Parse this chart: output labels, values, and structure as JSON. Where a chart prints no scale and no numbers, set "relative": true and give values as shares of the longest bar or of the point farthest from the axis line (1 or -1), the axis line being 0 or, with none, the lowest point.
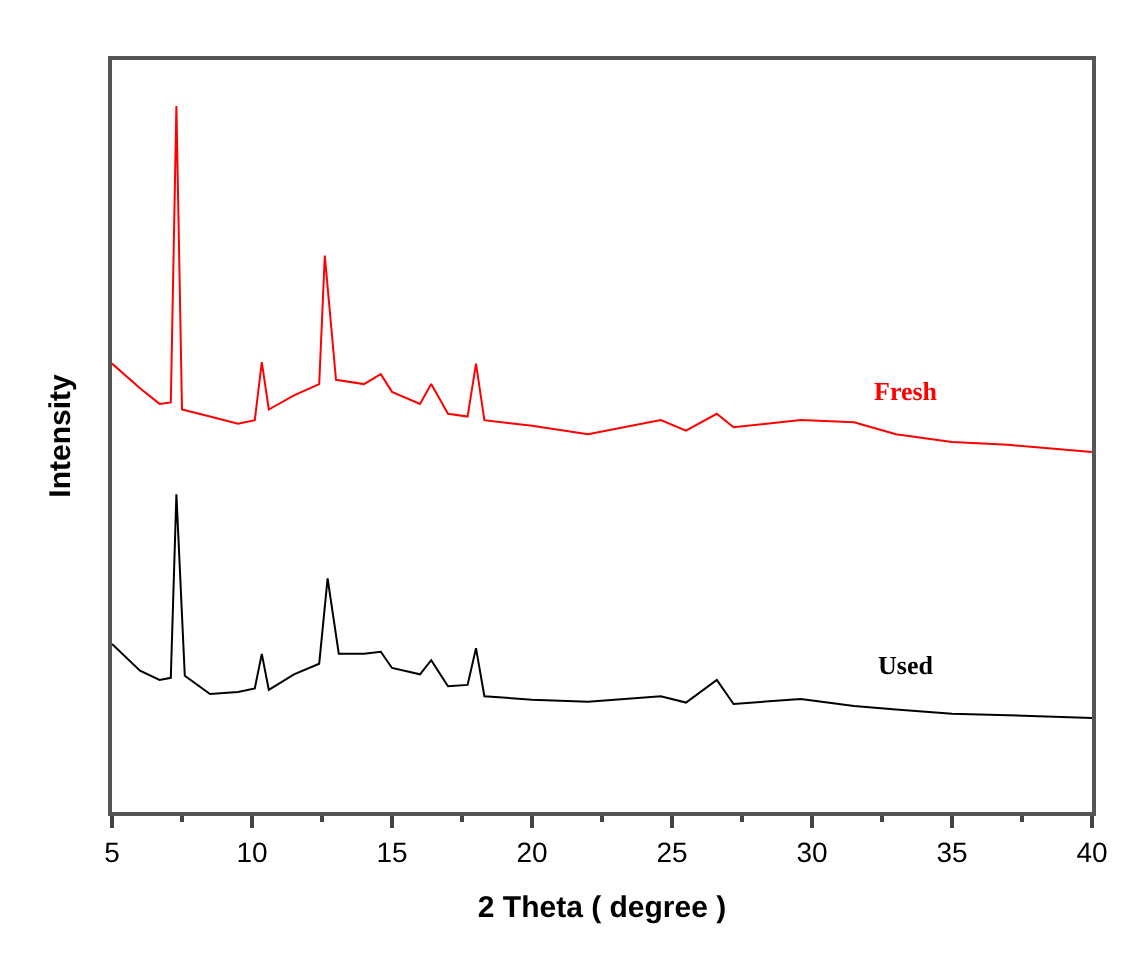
{
  "chart_data": {
    "type": "line",
    "relative": true,
    "xlabel": "2 Theta ( degree )",
    "ylabel": "Intensity",
    "xlim": [
      5,
      40
    ],
    "xticks": [
      5,
      10,
      15,
      20,
      25,
      30,
      35,
      40
    ],
    "legend": false,
    "marker": "none",
    "line_style": "solid",
    "series": [
      {
        "name": "Fresh",
        "color": "#ff0000",
        "x": [
          5,
          6,
          6.7,
          7.1,
          7.3,
          7.5,
          8.5,
          9.5,
          10.1,
          10.35,
          10.6,
          11.5,
          12.4,
          12.6,
          13.0,
          14,
          14.6,
          15,
          16,
          16.4,
          17,
          17.7,
          18.0,
          18.3,
          20,
          22,
          24.6,
          25.5,
          26.6,
          27.2,
          29.6,
          31.5,
          33,
          35,
          37,
          40
        ],
        "values": [
          0.635,
          0.6,
          0.578,
          0.58,
          1.0,
          0.57,
          0.56,
          0.55,
          0.555,
          0.637,
          0.57,
          0.59,
          0.606,
          0.788,
          0.612,
          0.606,
          0.62,
          0.595,
          0.578,
          0.606,
          0.564,
          0.56,
          0.635,
          0.555,
          0.547,
          0.535,
          0.555,
          0.54,
          0.564,
          0.545,
          0.555,
          0.552,
          0.535,
          0.524,
          0.52,
          0.51
        ]
      },
      {
        "name": "Used",
        "color": "#000000",
        "x": [
          5,
          6,
          6.7,
          7.1,
          7.3,
          7.6,
          8.5,
          9.5,
          10.1,
          10.35,
          10.6,
          11.5,
          12.4,
          12.7,
          13.1,
          14,
          14.6,
          15,
          16,
          16.4,
          17,
          17.7,
          18.0,
          18.3,
          20,
          22,
          24.6,
          25.5,
          26.6,
          27.2,
          29.6,
          31.5,
          33,
          35,
          37,
          40
        ],
        "values": [
          0.238,
          0.2,
          0.187,
          0.19,
          0.45,
          0.193,
          0.167,
          0.17,
          0.175,
          0.224,
          0.173,
          0.195,
          0.21,
          0.331,
          0.224,
          0.224,
          0.227,
          0.204,
          0.195,
          0.215,
          0.178,
          0.18,
          0.232,
          0.164,
          0.159,
          0.156,
          0.164,
          0.155,
          0.187,
          0.153,
          0.16,
          0.15,
          0.145,
          0.139,
          0.137,
          0.133
        ]
      }
    ]
  }
}
